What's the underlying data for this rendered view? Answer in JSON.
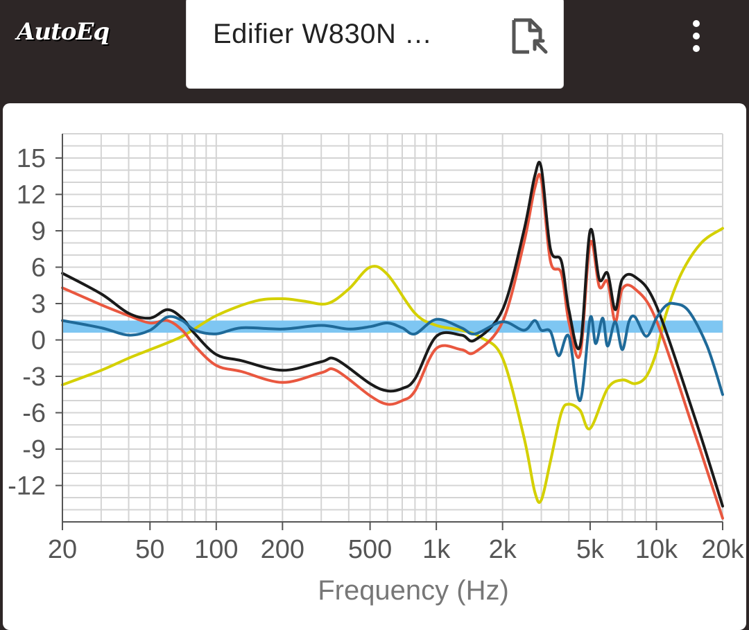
{
  "app": {
    "logo_text": "AutoEq",
    "menu_icon": "more-vertical-icon"
  },
  "headphone": {
    "name": "Edifier W830N …",
    "file_icon": "file-export-icon"
  },
  "colors": {
    "topbar": "#2d2626",
    "raw": "#e9573f",
    "error": "#1a1a1a",
    "equalization": "#d4d000",
    "equalized": "#1f6a99",
    "target": "#7ec6f2"
  },
  "chart_data": {
    "type": "line",
    "xlabel": "Frequency (Hz)",
    "xscale": "log",
    "xlim": [
      20,
      20000
    ],
    "ylim": [
      -15,
      17
    ],
    "x_ticks": [
      20,
      50,
      100,
      200,
      500,
      1000,
      2000,
      5000,
      10000,
      20000
    ],
    "x_tick_labels": [
      "20",
      "50",
      "100",
      "200",
      "500",
      "1k",
      "2k",
      "5k",
      "10k",
      "20k"
    ],
    "y_ticks": [
      15,
      12,
      9,
      6,
      3,
      0,
      -3,
      -6,
      -9,
      -12
    ],
    "y_tick_labels": [
      "15",
      "12",
      "9",
      "6",
      "3",
      "0",
      "-3",
      "-6",
      "-9",
      "-12"
    ],
    "grid": true,
    "target_band": [
      0.6,
      1.6
    ],
    "series": [
      {
        "key": "black",
        "color": "#1a1a1a",
        "x": [
          20,
          30,
          40,
          50,
          60,
          70,
          80,
          100,
          130,
          200,
          300,
          350,
          500,
          600,
          700,
          800,
          1000,
          1300,
          1500,
          2000,
          2500,
          2800,
          3000,
          3300,
          3700,
          4000,
          4500,
          5000,
          5500,
          6000,
          6500,
          7000,
          8000,
          10000,
          15000,
          20000
        ],
        "y": [
          5.5,
          3.8,
          2.2,
          1.8,
          2.5,
          1.8,
          0.5,
          -1.2,
          -1.7,
          -2.5,
          -1.8,
          -1.6,
          -3.6,
          -4.2,
          -4.0,
          -3.2,
          0.3,
          0.4,
          0.0,
          2.5,
          9.0,
          13.5,
          14.2,
          7.5,
          6.5,
          2.5,
          -0.5,
          9.0,
          5.0,
          5.5,
          2.5,
          5.0,
          5.2,
          2.8,
          -6.5,
          -13.7
        ]
      },
      {
        "key": "red",
        "color": "#e9573f",
        "x": [
          20,
          30,
          40,
          50,
          60,
          70,
          80,
          100,
          130,
          200,
          300,
          350,
          500,
          600,
          700,
          800,
          1000,
          1300,
          1500,
          2000,
          2500,
          2800,
          3000,
          3300,
          3700,
          4000,
          4500,
          5000,
          5500,
          6000,
          6500,
          7000,
          8000,
          10000,
          15000,
          20000
        ],
        "y": [
          4.3,
          2.9,
          2.0,
          1.4,
          1.6,
          0.8,
          -0.5,
          -2.1,
          -2.6,
          -3.5,
          -2.7,
          -2.5,
          -4.6,
          -5.3,
          -5.0,
          -4.2,
          -0.7,
          -0.8,
          -1.0,
          1.5,
          8.0,
          12.5,
          13.2,
          6.5,
          5.5,
          1.5,
          -1.2,
          8.0,
          4.4,
          4.8,
          1.5,
          4.2,
          4.2,
          1.6,
          -7.8,
          -14.7
        ]
      },
      {
        "key": "yellow",
        "color": "#d4d000",
        "x": [
          20,
          30,
          40,
          50,
          70,
          100,
          150,
          200,
          250,
          320,
          400,
          500,
          600,
          800,
          1000,
          1300,
          1600,
          2000,
          2500,
          2800,
          3000,
          3300,
          3700,
          4000,
          4500,
          5000,
          6000,
          7000,
          8000,
          9000,
          10000,
          11000,
          13000,
          16000,
          20000
        ],
        "y": [
          -3.7,
          -2.5,
          -1.5,
          -0.8,
          0.3,
          2.0,
          3.2,
          3.4,
          3.2,
          3.0,
          4.2,
          6.0,
          5.4,
          2.2,
          1.2,
          0.8,
          0.2,
          -1.5,
          -8.0,
          -12.5,
          -13.2,
          -10.0,
          -6.0,
          -5.3,
          -5.8,
          -7.3,
          -4.0,
          -3.3,
          -3.6,
          -3.0,
          -1.0,
          2.0,
          5.5,
          8.0,
          9.2
        ]
      },
      {
        "key": "blue",
        "color": "#1f6a99",
        "x": [
          20,
          30,
          40,
          50,
          60,
          70,
          80,
          100,
          130,
          200,
          300,
          400,
          500,
          600,
          700,
          800,
          1000,
          1300,
          1500,
          2000,
          2500,
          2800,
          3000,
          3300,
          3600,
          4000,
          4500,
          5000,
          5300,
          5700,
          6000,
          6500,
          7000,
          7500,
          8000,
          9000,
          10000,
          11000,
          12000,
          14000,
          17000,
          20000
        ],
        "y": [
          1.6,
          1.0,
          0.4,
          0.8,
          1.9,
          1.6,
          0.8,
          0.5,
          1.0,
          0.9,
          1.2,
          0.9,
          1.1,
          1.4,
          1.0,
          0.5,
          1.7,
          1.0,
          0.5,
          1.5,
          0.8,
          1.6,
          0.8,
          0.7,
          -1.3,
          0.3,
          -5.0,
          1.8,
          -0.3,
          1.8,
          -0.5,
          1.5,
          -0.8,
          1.5,
          1.9,
          0.3,
          1.8,
          2.8,
          3.0,
          2.4,
          -0.5,
          -4.5
        ]
      }
    ]
  }
}
